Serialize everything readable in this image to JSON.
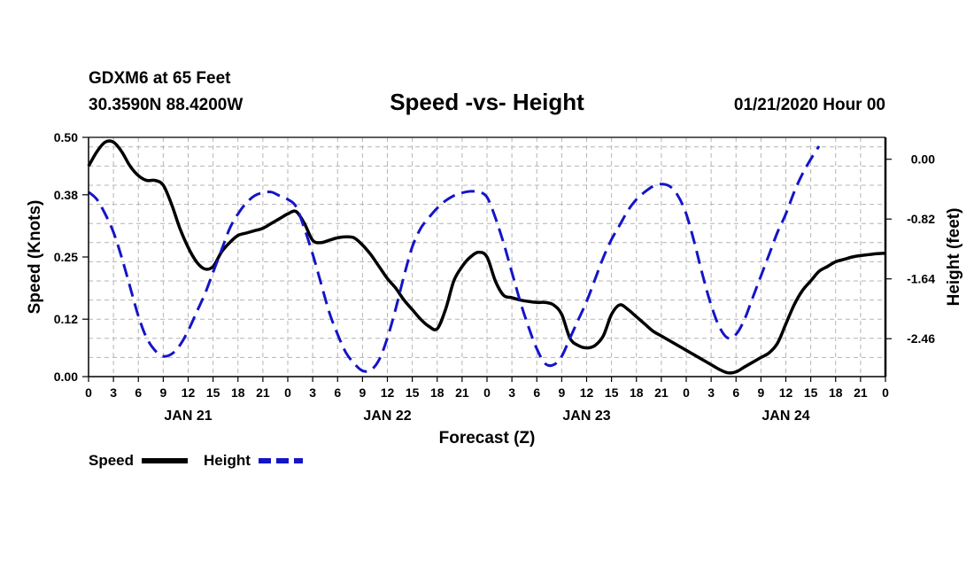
{
  "header": {
    "station": "GDXM6 at 65 Feet",
    "coords": "30.3590N 88.4200W",
    "title": "Speed -vs- Height",
    "issued": "01/21/2020 Hour 00"
  },
  "legend": {
    "speed_label": "Speed",
    "height_label": "Height"
  },
  "colors": {
    "speed": "#000000",
    "height": "#1414c8",
    "grid": "#b4b4b4"
  },
  "chart_data": {
    "type": "line",
    "title": "Speed -vs- Height",
    "xlabel": "Forecast (Z)",
    "ylabel": "Speed (Knots)",
    "y2label": "Height (feet)",
    "xlim": [
      0,
      96
    ],
    "ylim": [
      0,
      0.5
    ],
    "y2lim": [
      -2.98,
      0.3
    ],
    "grid": true,
    "x_ticks": [
      0,
      3,
      6,
      9,
      12,
      15,
      18,
      21,
      24,
      27,
      30,
      33,
      36,
      39,
      42,
      45,
      48,
      51,
      54,
      57,
      60,
      63,
      66,
      69,
      72,
      75,
      78,
      81,
      84,
      87,
      90,
      93,
      96
    ],
    "x_tick_labels": [
      "0",
      "3",
      "6",
      "9",
      "12",
      "15",
      "18",
      "21",
      "0",
      "3",
      "6",
      "9",
      "12",
      "15",
      "18",
      "21",
      "0",
      "3",
      "6",
      "9",
      "12",
      "15",
      "18",
      "21",
      "0",
      "3",
      "6",
      "9",
      "12",
      "15",
      "18",
      "21",
      "0"
    ],
    "day_labels": [
      {
        "x": 12,
        "label": "JAN 21"
      },
      {
        "x": 36,
        "label": "JAN 22"
      },
      {
        "x": 60,
        "label": "JAN 23"
      },
      {
        "x": 84,
        "label": "JAN 24"
      }
    ],
    "y_ticks": [
      0.0,
      0.12,
      0.25,
      0.38,
      0.5
    ],
    "y_tick_labels": [
      "0.00",
      "0.12",
      "0.25",
      "0.38",
      "0.50"
    ],
    "y2_ticks": [
      0.0,
      -0.82,
      -1.64,
      -2.46
    ],
    "y2_tick_labels": [
      "0.00",
      "-0.82",
      "-1.64",
      "-2.46"
    ],
    "series": [
      {
        "name": "Speed",
        "axis": "left",
        "style": "solid",
        "points": [
          [
            0,
            0.44
          ],
          [
            1,
            0.47
          ],
          [
            2,
            0.49
          ],
          [
            3,
            0.49
          ],
          [
            4,
            0.47
          ],
          [
            5,
            0.44
          ],
          [
            6,
            0.42
          ],
          [
            7,
            0.41
          ],
          [
            8,
            0.41
          ],
          [
            9,
            0.4
          ],
          [
            10,
            0.36
          ],
          [
            11,
            0.31
          ],
          [
            12,
            0.27
          ],
          [
            13,
            0.24
          ],
          [
            14,
            0.225
          ],
          [
            15,
            0.23
          ],
          [
            16,
            0.26
          ],
          [
            17,
            0.28
          ],
          [
            18,
            0.295
          ],
          [
            19,
            0.3
          ],
          [
            20,
            0.305
          ],
          [
            21,
            0.31
          ],
          [
            22,
            0.32
          ],
          [
            23,
            0.33
          ],
          [
            24,
            0.34
          ],
          [
            25,
            0.345
          ],
          [
            26,
            0.32
          ],
          [
            27,
            0.285
          ],
          [
            28,
            0.28
          ],
          [
            29,
            0.285
          ],
          [
            30,
            0.29
          ],
          [
            31,
            0.292
          ],
          [
            32,
            0.29
          ],
          [
            33,
            0.275
          ],
          [
            34,
            0.255
          ],
          [
            35,
            0.23
          ],
          [
            36,
            0.205
          ],
          [
            37,
            0.185
          ],
          [
            38,
            0.16
          ],
          [
            39,
            0.14
          ],
          [
            40,
            0.12
          ],
          [
            41,
            0.105
          ],
          [
            42,
            0.1
          ],
          [
            43,
            0.14
          ],
          [
            44,
            0.2
          ],
          [
            45,
            0.23
          ],
          [
            46,
            0.25
          ],
          [
            47,
            0.26
          ],
          [
            48,
            0.25
          ],
          [
            49,
            0.2
          ],
          [
            50,
            0.17
          ],
          [
            51,
            0.165
          ],
          [
            52,
            0.16
          ],
          [
            53,
            0.157
          ],
          [
            54,
            0.155
          ],
          [
            55,
            0.155
          ],
          [
            56,
            0.15
          ],
          [
            57,
            0.13
          ],
          [
            58,
            0.08
          ],
          [
            59,
            0.065
          ],
          [
            60,
            0.06
          ],
          [
            61,
            0.065
          ],
          [
            62,
            0.085
          ],
          [
            63,
            0.13
          ],
          [
            64,
            0.15
          ],
          [
            65,
            0.14
          ],
          [
            66,
            0.125
          ],
          [
            67,
            0.11
          ],
          [
            68,
            0.095
          ],
          [
            69,
            0.085
          ],
          [
            70,
            0.075
          ],
          [
            71,
            0.065
          ],
          [
            72,
            0.055
          ],
          [
            73,
            0.045
          ],
          [
            74,
            0.035
          ],
          [
            75,
            0.025
          ],
          [
            76,
            0.015
          ],
          [
            77,
            0.008
          ],
          [
            78,
            0.01
          ],
          [
            79,
            0.02
          ],
          [
            80,
            0.03
          ],
          [
            81,
            0.04
          ],
          [
            82,
            0.05
          ],
          [
            83,
            0.07
          ],
          [
            84,
            0.11
          ],
          [
            85,
            0.15
          ],
          [
            86,
            0.18
          ],
          [
            87,
            0.2
          ],
          [
            88,
            0.22
          ],
          [
            89,
            0.23
          ],
          [
            90,
            0.24
          ],
          [
            91,
            0.245
          ],
          [
            92,
            0.25
          ],
          [
            93,
            0.253
          ],
          [
            94,
            0.255
          ],
          [
            95,
            0.257
          ],
          [
            96,
            0.258
          ]
        ]
      },
      {
        "name": "Height",
        "axis": "right",
        "style": "dashed",
        "points": [
          [
            0,
            -0.45
          ],
          [
            1,
            -0.55
          ],
          [
            2,
            -0.75
          ],
          [
            3,
            -1.0
          ],
          [
            4,
            -1.35
          ],
          [
            5,
            -1.75
          ],
          [
            6,
            -2.15
          ],
          [
            7,
            -2.45
          ],
          [
            8,
            -2.62
          ],
          [
            9,
            -2.7
          ],
          [
            10,
            -2.67
          ],
          [
            11,
            -2.55
          ],
          [
            12,
            -2.35
          ],
          [
            13,
            -2.1
          ],
          [
            14,
            -1.85
          ],
          [
            15,
            -1.55
          ],
          [
            16,
            -1.25
          ],
          [
            17,
            -0.95
          ],
          [
            18,
            -0.75
          ],
          [
            19,
            -0.6
          ],
          [
            20,
            -0.5
          ],
          [
            21,
            -0.46
          ],
          [
            22,
            -0.45
          ],
          [
            23,
            -0.5
          ],
          [
            24,
            -0.55
          ],
          [
            25,
            -0.65
          ],
          [
            26,
            -0.95
          ],
          [
            27,
            -1.3
          ],
          [
            28,
            -1.7
          ],
          [
            29,
            -2.1
          ],
          [
            30,
            -2.4
          ],
          [
            31,
            -2.65
          ],
          [
            32,
            -2.8
          ],
          [
            33,
            -2.9
          ],
          [
            34,
            -2.89
          ],
          [
            35,
            -2.75
          ],
          [
            36,
            -2.45
          ],
          [
            37,
            -2.05
          ],
          [
            38,
            -1.6
          ],
          [
            39,
            -1.2
          ],
          [
            40,
            -0.95
          ],
          [
            41,
            -0.8
          ],
          [
            42,
            -0.67
          ],
          [
            43,
            -0.57
          ],
          [
            44,
            -0.5
          ],
          [
            45,
            -0.46
          ],
          [
            46,
            -0.44
          ],
          [
            47,
            -0.45
          ],
          [
            48,
            -0.52
          ],
          [
            49,
            -0.8
          ],
          [
            50,
            -1.15
          ],
          [
            51,
            -1.55
          ],
          [
            52,
            -1.95
          ],
          [
            53,
            -2.3
          ],
          [
            54,
            -2.6
          ],
          [
            55,
            -2.8
          ],
          [
            56,
            -2.82
          ],
          [
            57,
            -2.7
          ],
          [
            58,
            -2.45
          ],
          [
            59,
            -2.2
          ],
          [
            60,
            -1.95
          ],
          [
            61,
            -1.65
          ],
          [
            62,
            -1.35
          ],
          [
            63,
            -1.1
          ],
          [
            64,
            -0.9
          ],
          [
            65,
            -0.7
          ],
          [
            66,
            -0.55
          ],
          [
            67,
            -0.45
          ],
          [
            68,
            -0.37
          ],
          [
            69,
            -0.34
          ],
          [
            70,
            -0.37
          ],
          [
            71,
            -0.5
          ],
          [
            72,
            -0.75
          ],
          [
            73,
            -1.15
          ],
          [
            74,
            -1.6
          ],
          [
            75,
            -2.0
          ],
          [
            76,
            -2.3
          ],
          [
            77,
            -2.45
          ],
          [
            78,
            -2.4
          ],
          [
            79,
            -2.2
          ],
          [
            80,
            -1.9
          ],
          [
            81,
            -1.6
          ],
          [
            82,
            -1.3
          ],
          [
            83,
            -1.0
          ],
          [
            84,
            -0.75
          ],
          [
            85,
            -0.45
          ],
          [
            86,
            -0.2
          ],
          [
            87,
            0.0
          ],
          [
            88,
            0.18
          ]
        ]
      }
    ]
  }
}
